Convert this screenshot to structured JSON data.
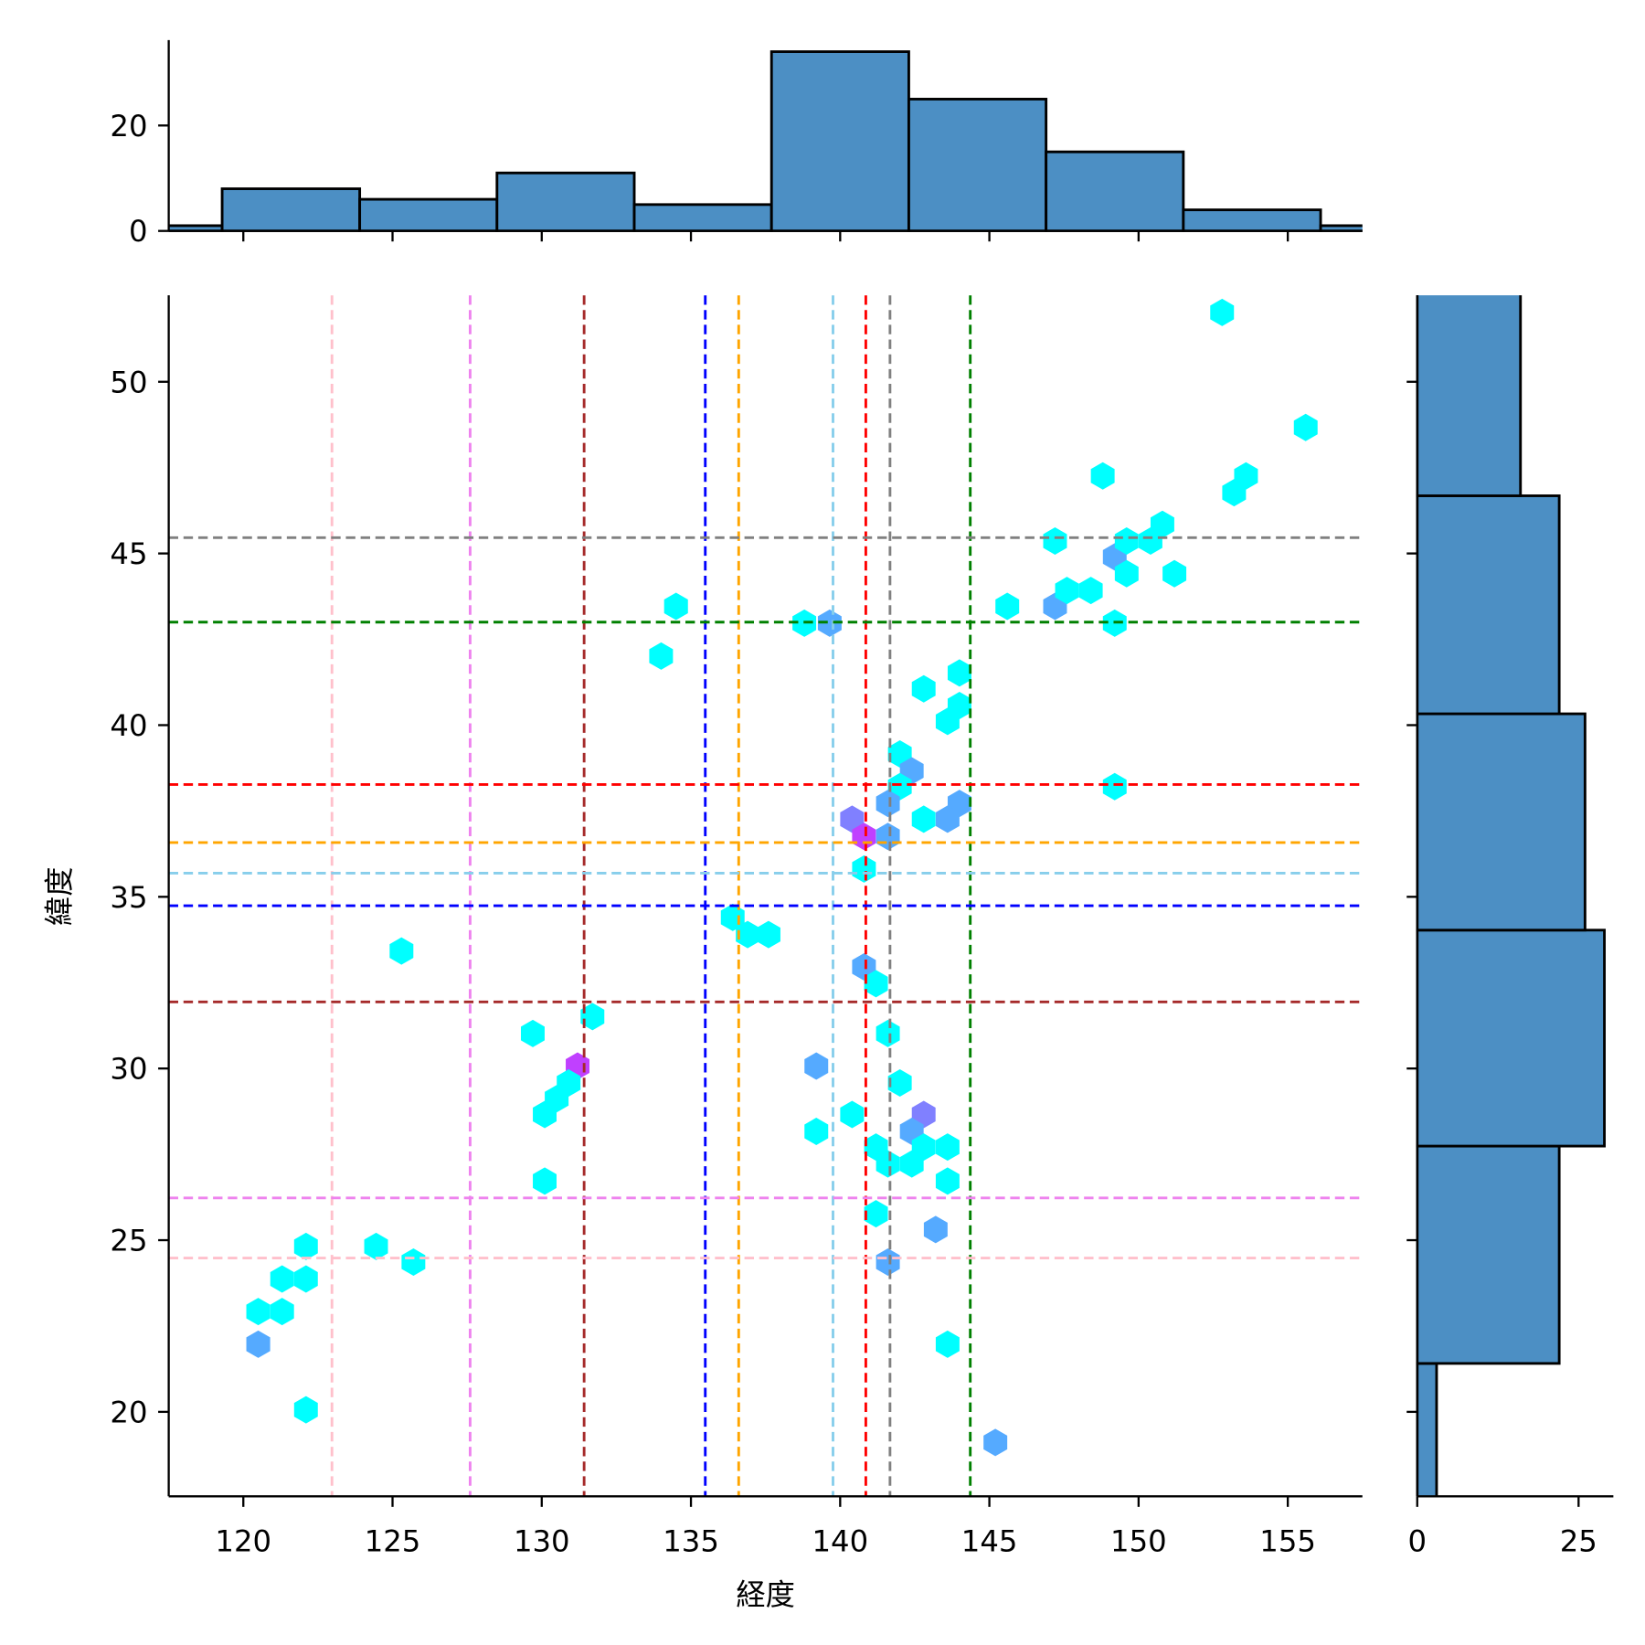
{
  "chart_data": {
    "type": "hexbin-jointplot",
    "xlabel": "経度",
    "ylabel": "緯度",
    "xlim": [
      117.5,
      157.5
    ],
    "ylim": [
      17.54,
      52.52
    ],
    "xticks": [
      120,
      125,
      130,
      135,
      140,
      145,
      150,
      155
    ],
    "yticks": [
      20,
      25,
      30,
      35,
      40,
      45,
      50
    ],
    "count_colors": {
      "1": "#00ffff",
      "2": "#55aaff",
      "3": "#8080ff",
      "4": "#c040ff"
    },
    "hexbins": [
      {
        "x": 152.8,
        "y": 52.02,
        "count": 1
      },
      {
        "x": 155.6,
        "y": 48.67,
        "count": 1
      },
      {
        "x": 148.8,
        "y": 47.26,
        "count": 1
      },
      {
        "x": 153.2,
        "y": 46.77,
        "count": 1
      },
      {
        "x": 153.6,
        "y": 47.26,
        "count": 1
      },
      {
        "x": 150.8,
        "y": 45.85,
        "count": 1
      },
      {
        "x": 147.2,
        "y": 45.36,
        "count": 1
      },
      {
        "x": 149.2,
        "y": 44.9,
        "count": 2
      },
      {
        "x": 149.6,
        "y": 45.36,
        "count": 1
      },
      {
        "x": 150.4,
        "y": 45.36,
        "count": 1
      },
      {
        "x": 151.2,
        "y": 44.41,
        "count": 1
      },
      {
        "x": 149.6,
        "y": 44.41,
        "count": 1
      },
      {
        "x": 145.6,
        "y": 43.46,
        "count": 1
      },
      {
        "x": 147.2,
        "y": 43.46,
        "count": 2
      },
      {
        "x": 147.6,
        "y": 43.92,
        "count": 1
      },
      {
        "x": 148.4,
        "y": 43.92,
        "count": 1
      },
      {
        "x": 149.2,
        "y": 42.97,
        "count": 1
      },
      {
        "x": 138.8,
        "y": 42.97,
        "count": 1
      },
      {
        "x": 139.65,
        "y": 42.97,
        "count": 2
      },
      {
        "x": 134.5,
        "y": 43.46,
        "count": 1
      },
      {
        "x": 134.0,
        "y": 42.01,
        "count": 1
      },
      {
        "x": 144.0,
        "y": 41.52,
        "count": 1
      },
      {
        "x": 142.8,
        "y": 41.06,
        "count": 1
      },
      {
        "x": 144.0,
        "y": 40.57,
        "count": 1
      },
      {
        "x": 143.6,
        "y": 40.11,
        "count": 1
      },
      {
        "x": 142.0,
        "y": 39.16,
        "count": 1
      },
      {
        "x": 142.4,
        "y": 38.67,
        "count": 2
      },
      {
        "x": 142.0,
        "y": 38.21,
        "count": 1
      },
      {
        "x": 149.2,
        "y": 38.21,
        "count": 1
      },
      {
        "x": 141.6,
        "y": 37.72,
        "count": 2
      },
      {
        "x": 144.0,
        "y": 37.72,
        "count": 2
      },
      {
        "x": 142.8,
        "y": 37.26,
        "count": 1
      },
      {
        "x": 143.6,
        "y": 37.26,
        "count": 2
      },
      {
        "x": 140.4,
        "y": 37.26,
        "count": 3
      },
      {
        "x": 140.8,
        "y": 36.76,
        "count": 4
      },
      {
        "x": 141.6,
        "y": 36.76,
        "count": 2
      },
      {
        "x": 140.8,
        "y": 35.81,
        "count": 1
      },
      {
        "x": 136.4,
        "y": 34.4,
        "count": 1
      },
      {
        "x": 136.9,
        "y": 33.9,
        "count": 1
      },
      {
        "x": 137.6,
        "y": 33.9,
        "count": 1
      },
      {
        "x": 125.3,
        "y": 33.42,
        "count": 1
      },
      {
        "x": 140.8,
        "y": 32.96,
        "count": 2
      },
      {
        "x": 141.2,
        "y": 32.47,
        "count": 1
      },
      {
        "x": 141.6,
        "y": 31.02,
        "count": 1
      },
      {
        "x": 131.7,
        "y": 31.51,
        "count": 1
      },
      {
        "x": 129.7,
        "y": 31.02,
        "count": 1
      },
      {
        "x": 131.2,
        "y": 30.07,
        "count": 4
      },
      {
        "x": 139.2,
        "y": 30.07,
        "count": 2
      },
      {
        "x": 130.9,
        "y": 29.58,
        "count": 1
      },
      {
        "x": 130.5,
        "y": 29.12,
        "count": 1
      },
      {
        "x": 130.1,
        "y": 28.66,
        "count": 1
      },
      {
        "x": 140.4,
        "y": 28.66,
        "count": 1
      },
      {
        "x": 142.0,
        "y": 29.58,
        "count": 1
      },
      {
        "x": 142.8,
        "y": 28.66,
        "count": 3
      },
      {
        "x": 142.4,
        "y": 28.17,
        "count": 2
      },
      {
        "x": 139.2,
        "y": 28.17,
        "count": 1
      },
      {
        "x": 141.2,
        "y": 27.71,
        "count": 1
      },
      {
        "x": 141.6,
        "y": 27.22,
        "count": 1
      },
      {
        "x": 142.4,
        "y": 27.22,
        "count": 1
      },
      {
        "x": 142.8,
        "y": 27.71,
        "count": 1
      },
      {
        "x": 143.6,
        "y": 27.71,
        "count": 1
      },
      {
        "x": 143.6,
        "y": 26.72,
        "count": 1
      },
      {
        "x": 130.1,
        "y": 26.72,
        "count": 1
      },
      {
        "x": 141.2,
        "y": 25.77,
        "count": 1
      },
      {
        "x": 143.2,
        "y": 25.31,
        "count": 2
      },
      {
        "x": 141.6,
        "y": 24.36,
        "count": 2
      },
      {
        "x": 122.1,
        "y": 24.82,
        "count": 1
      },
      {
        "x": 124.45,
        "y": 24.82,
        "count": 1
      },
      {
        "x": 125.7,
        "y": 24.36,
        "count": 1
      },
      {
        "x": 121.3,
        "y": 23.87,
        "count": 1
      },
      {
        "x": 122.1,
        "y": 23.87,
        "count": 1
      },
      {
        "x": 120.5,
        "y": 22.92,
        "count": 1
      },
      {
        "x": 121.3,
        "y": 22.92,
        "count": 1
      },
      {
        "x": 120.5,
        "y": 21.97,
        "count": 2
      },
      {
        "x": 143.6,
        "y": 21.97,
        "count": 1
      },
      {
        "x": 122.1,
        "y": 20.06,
        "count": 1
      },
      {
        "x": 145.2,
        "y": 19.11,
        "count": 2
      }
    ],
    "vlines": [
      {
        "x": 122.97,
        "color": "#ffc0cb"
      },
      {
        "x": 127.6,
        "color": "#ee82ee"
      },
      {
        "x": 131.42,
        "color": "#a52a2a"
      },
      {
        "x": 135.48,
        "color": "#0000ff"
      },
      {
        "x": 136.6,
        "color": "#ffa500"
      },
      {
        "x": 139.76,
        "color": "#87ceeb"
      },
      {
        "x": 140.86,
        "color": "#ff0000"
      },
      {
        "x": 141.67,
        "color": "#808080"
      },
      {
        "x": 144.36,
        "color": "#008000"
      }
    ],
    "hlines": [
      {
        "y": 45.46,
        "color": "#808080"
      },
      {
        "y": 43.0,
        "color": "#008000"
      },
      {
        "y": 38.27,
        "color": "#ff0000"
      },
      {
        "y": 36.58,
        "color": "#ffa500"
      },
      {
        "y": 35.69,
        "color": "#87ceeb"
      },
      {
        "y": 34.74,
        "color": "#0000ff"
      },
      {
        "y": 31.94,
        "color": "#a52a2a"
      },
      {
        "y": 26.23,
        "color": "#ee82ee"
      },
      {
        "y": 24.48,
        "color": "#ffc0cb"
      }
    ],
    "top_hist": {
      "edges": [
        114.68,
        119.29,
        123.9,
        128.5,
        133.1,
        137.7,
        142.3,
        146.9,
        151.5,
        156.1,
        160.7
      ],
      "counts": [
        1,
        8,
        6,
        11,
        5,
        34,
        25,
        15,
        4,
        1
      ],
      "ylim": [
        0,
        36
      ],
      "yticks": [
        0,
        20
      ],
      "color": "#4c8fc4"
    },
    "right_hist": {
      "edges": [
        15.09,
        21.41,
        27.74,
        34.03,
        40.33,
        46.68,
        52.98
      ],
      "counts": [
        3,
        22,
        29,
        26,
        22,
        16
      ],
      "xlim": [
        0,
        30.5
      ],
      "xticks": [
        0,
        25
      ],
      "color": "#4c8fc4"
    }
  }
}
